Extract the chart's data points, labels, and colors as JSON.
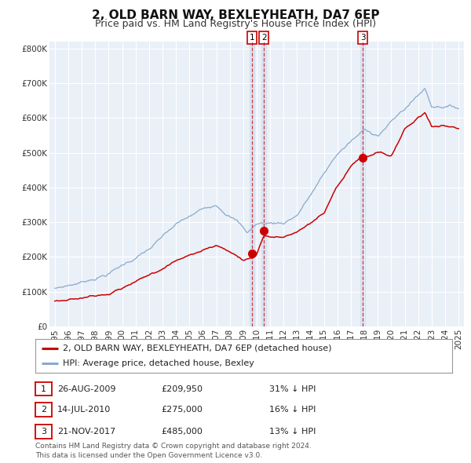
{
  "title": "2, OLD BARN WAY, BEXLEYHEATH, DA7 6EP",
  "subtitle": "Price paid vs. HM Land Registry's House Price Index (HPI)",
  "ylim": [
    0,
    820000
  ],
  "yticks": [
    0,
    100000,
    200000,
    300000,
    400000,
    500000,
    600000,
    700000,
    800000
  ],
  "ytick_labels": [
    "£0",
    "£100K",
    "£200K",
    "£300K",
    "£400K",
    "£500K",
    "£600K",
    "£700K",
    "£800K"
  ],
  "background_color": "#ffffff",
  "plot_bg_color": "#eaf0f8",
  "grid_color": "#ffffff",
  "line1_color": "#cc0000",
  "line2_color": "#88aacc",
  "sale1_date": 2009.65,
  "sale1_price": 209950,
  "sale2_date": 2010.53,
  "sale2_price": 275000,
  "sale3_date": 2017.89,
  "sale3_price": 485000,
  "legend_line1": "2, OLD BARN WAY, BEXLEYHEATH, DA7 6EP (detached house)",
  "legend_line2": "HPI: Average price, detached house, Bexley",
  "table_rows": [
    {
      "num": "1",
      "date": "26-AUG-2009",
      "price": "£209,950",
      "hpi": "31% ↓ HPI"
    },
    {
      "num": "2",
      "date": "14-JUL-2010",
      "price": "£275,000",
      "hpi": "16% ↓ HPI"
    },
    {
      "num": "3",
      "date": "21-NOV-2017",
      "price": "£485,000",
      "hpi": "13% ↓ HPI"
    }
  ],
  "footer": "Contains HM Land Registry data © Crown copyright and database right 2024.\nThis data is licensed under the Open Government Licence v3.0.",
  "title_fontsize": 11,
  "subtitle_fontsize": 9,
  "tick_fontsize": 7.5,
  "legend_fontsize": 8,
  "table_fontsize": 8,
  "footer_fontsize": 6.5
}
